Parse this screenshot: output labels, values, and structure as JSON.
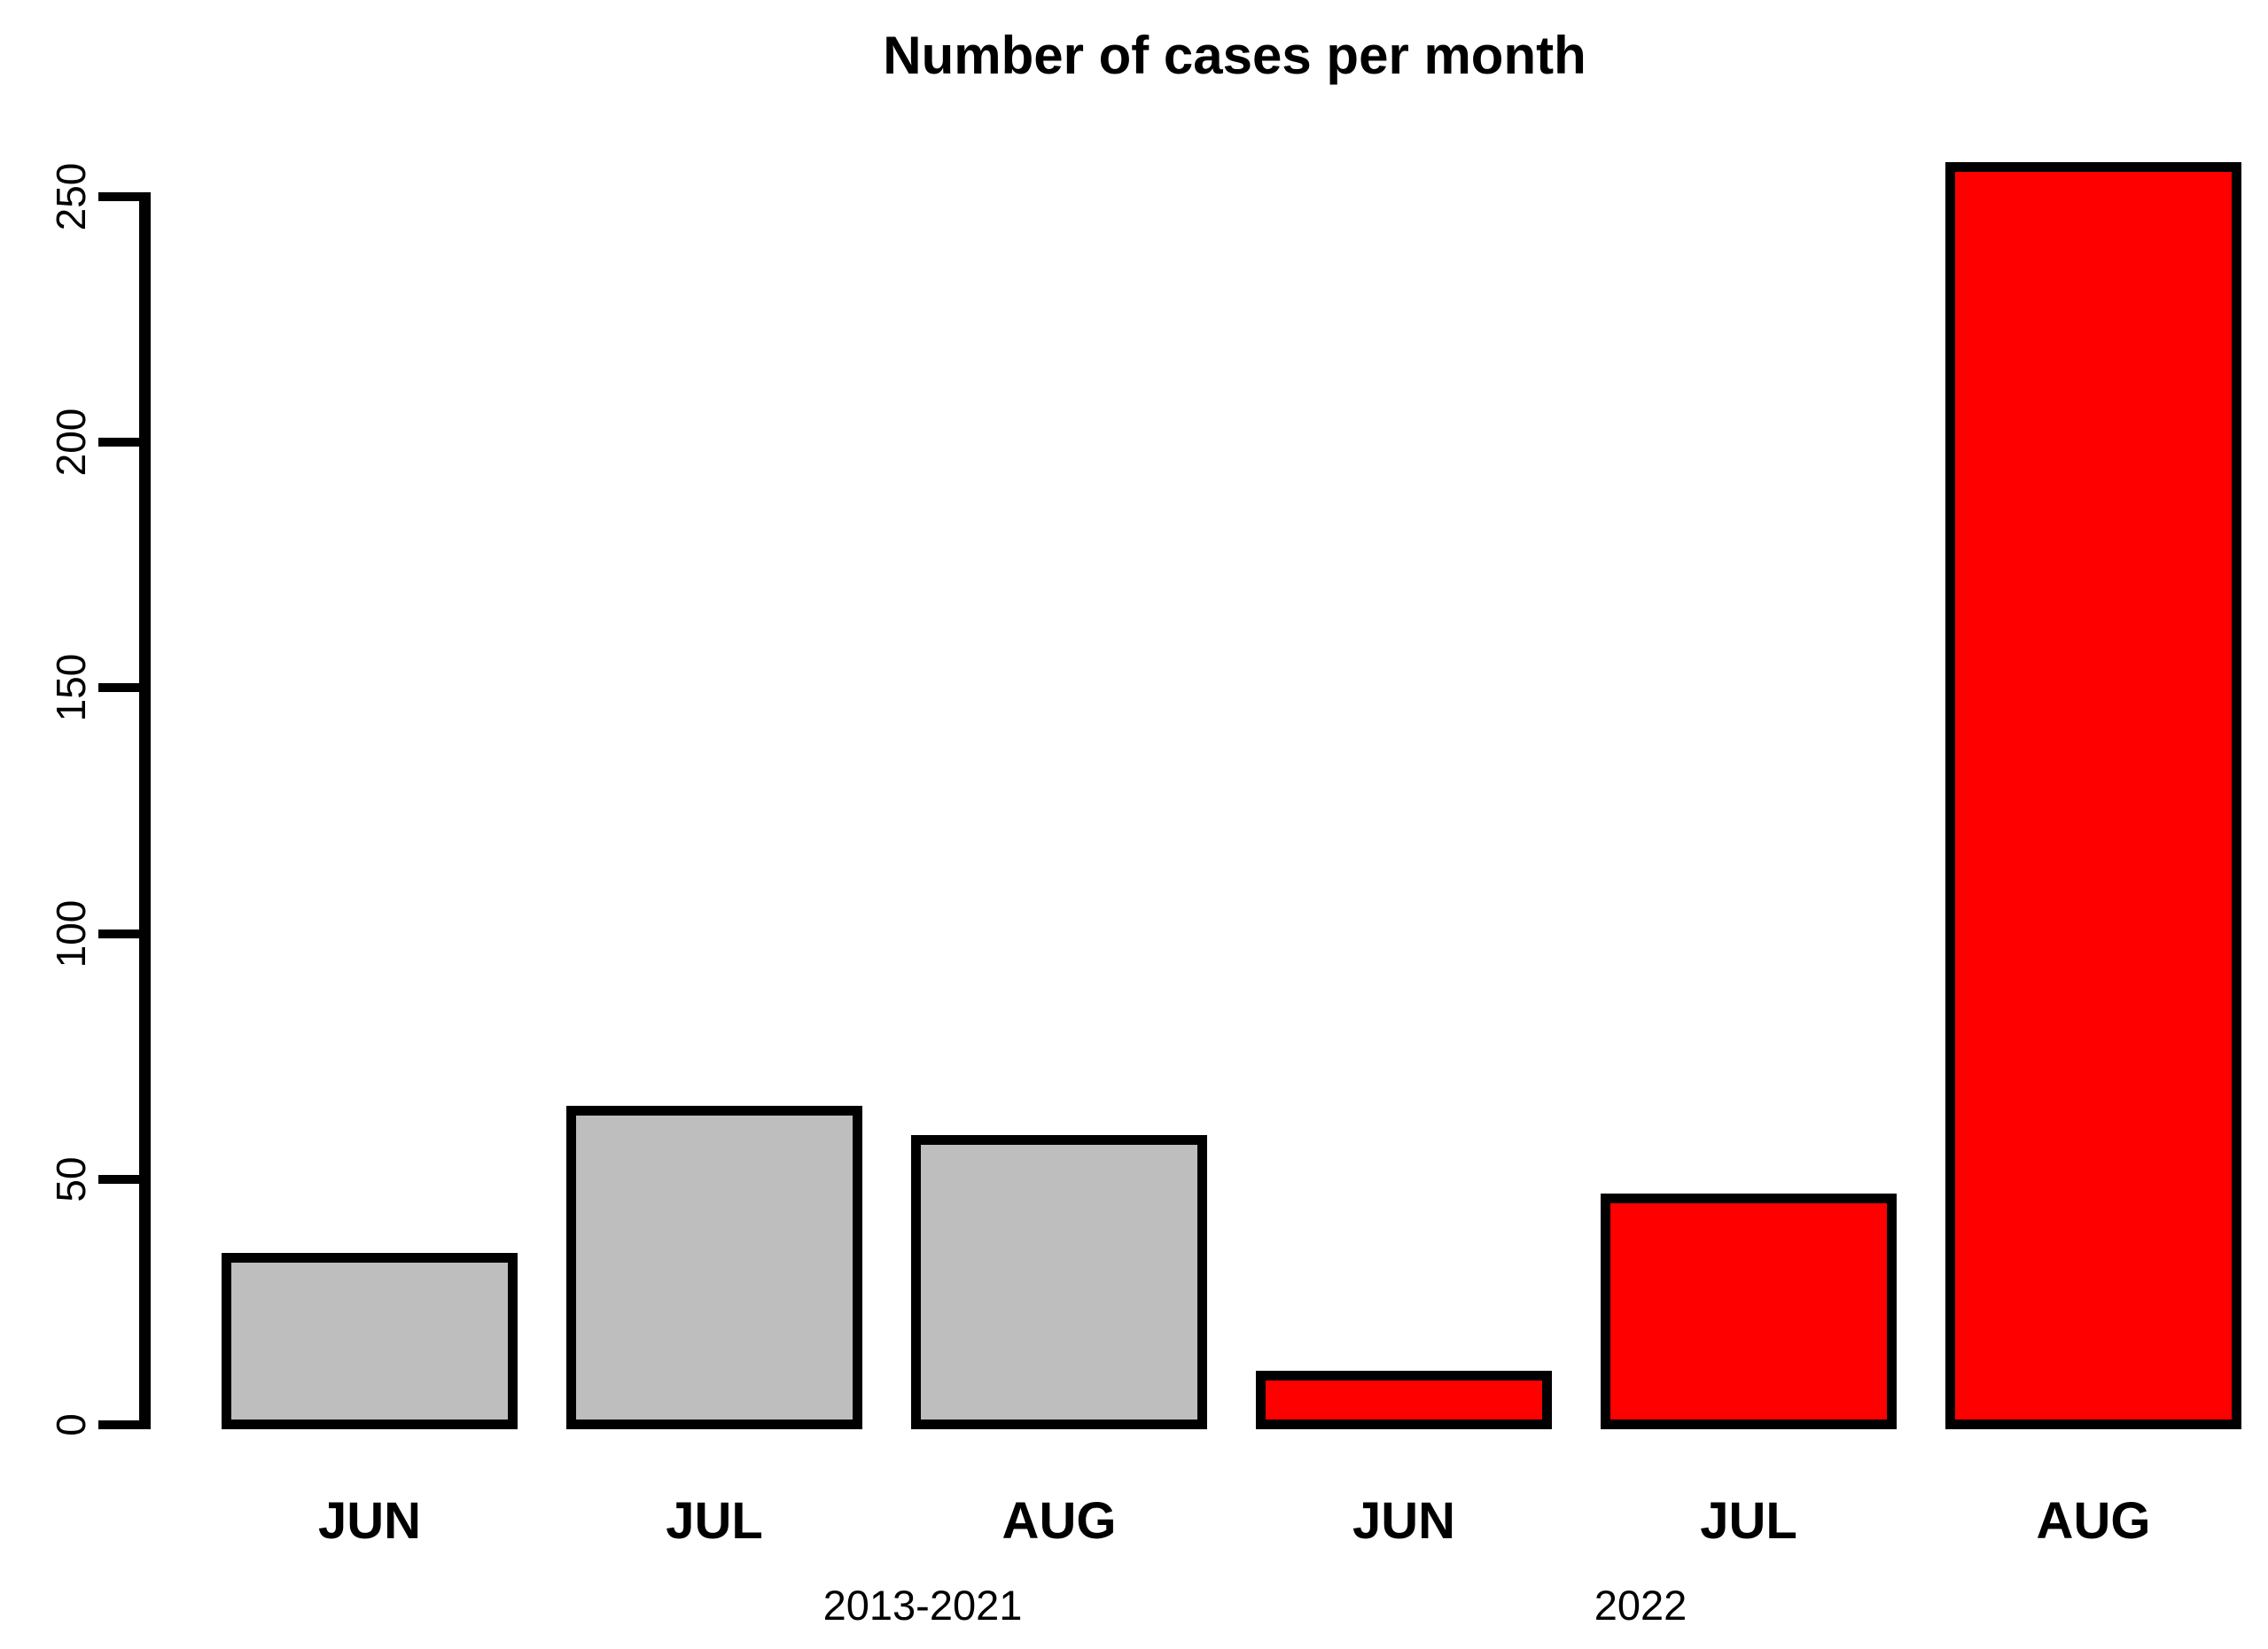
{
  "chart_data": {
    "type": "bar",
    "title": "Number of cases per month",
    "categories": [
      "JUN",
      "JUL",
      "AUG",
      "JUN",
      "JUL",
      "AUG"
    ],
    "series": [
      {
        "name": "2013-2021",
        "color": "#BEBEBE",
        "values": [
          34,
          64,
          58
        ]
      },
      {
        "name": "2022",
        "color": "#FF0000",
        "values": [
          10,
          46,
          256
        ]
      }
    ],
    "group_labels": [
      "2013-2021",
      "2022"
    ],
    "yticks": [
      0,
      50,
      100,
      150,
      200,
      250
    ],
    "ylim": [
      0,
      250
    ],
    "xlabel": "",
    "ylabel": "",
    "bar_border_color": "#000000",
    "axis_color": "#000000",
    "background_color": "#FFFFFF",
    "legend_position": "none",
    "grid": false
  }
}
